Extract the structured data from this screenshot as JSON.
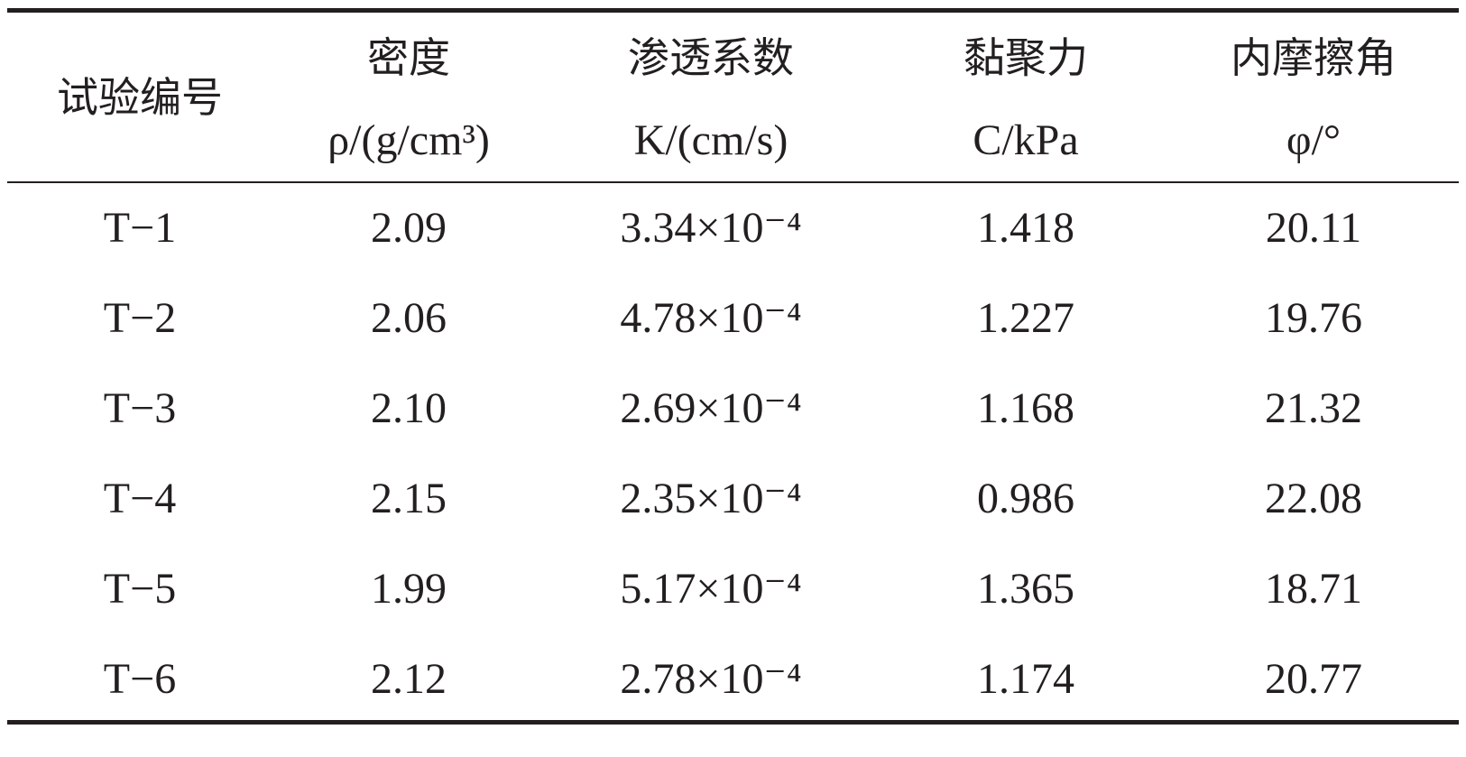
{
  "table": {
    "header": [
      {
        "name": "试验编号"
      },
      {
        "name": "密度",
        "unit": "ρ/(g/cm³)"
      },
      {
        "name": "渗透系数",
        "unit": "K/(cm/s)"
      },
      {
        "name": "黏聚力",
        "unit": "C/kPa"
      },
      {
        "name": "内摩擦角",
        "unit": "φ/°"
      }
    ],
    "rows": [
      [
        "T−1",
        "2.09",
        "3.34×10⁻⁴",
        "1.418",
        "20.11"
      ],
      [
        "T−2",
        "2.06",
        "4.78×10⁻⁴",
        "1.227",
        "19.76"
      ],
      [
        "T−3",
        "2.10",
        "2.69×10⁻⁴",
        "1.168",
        "21.32"
      ],
      [
        "T−4",
        "2.15",
        "2.35×10⁻⁴",
        "0.986",
        "22.08"
      ],
      [
        "T−5",
        "1.99",
        "5.17×10⁻⁴",
        "1.365",
        "18.71"
      ],
      [
        "T−6",
        "2.12",
        "2.78×10⁻⁴",
        "1.174",
        "20.77"
      ]
    ]
  }
}
